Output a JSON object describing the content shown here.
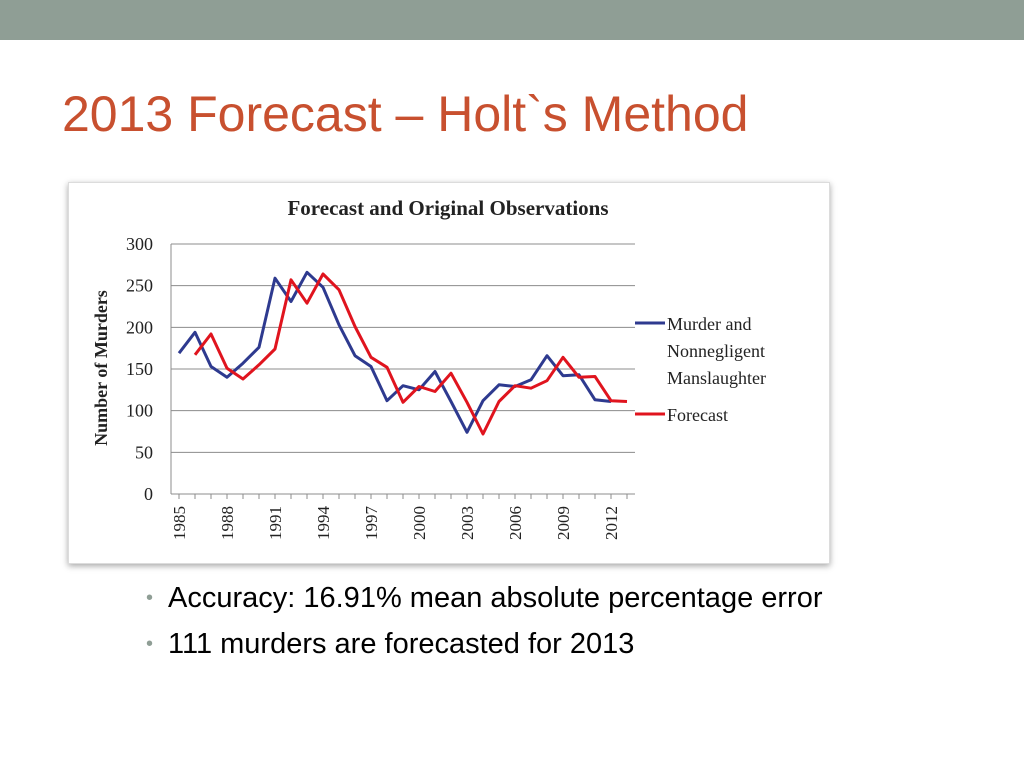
{
  "slide": {
    "title": "2013 Forecast – Holt`s Method",
    "bullets": [
      "Accuracy: 16.91% mean absolute percentage error",
      "111 murders are forecasted for 2013"
    ],
    "colors": {
      "top_bar": "#8f9e95",
      "title": "#c8502f",
      "bullet": "#8f9e95"
    }
  },
  "chart_data": {
    "type": "line",
    "title": "Forecast and Original Observations",
    "xlabel": "",
    "ylabel": "Number of Murders",
    "ylim": [
      0,
      300
    ],
    "yticks": [
      0,
      50,
      100,
      150,
      200,
      250,
      300
    ],
    "xticks": [
      1985,
      1988,
      1991,
      1994,
      1997,
      2000,
      2003,
      2006,
      2009,
      2012
    ],
    "xlim": [
      1985,
      2013
    ],
    "grid": true,
    "legend_position": "right",
    "series": [
      {
        "name": "Murder and Nonnegligent Manslaughter",
        "color": "#2e3a8f",
        "x": [
          1985,
          1986,
          1987,
          1988,
          1989,
          1990,
          1991,
          1992,
          1993,
          1994,
          1995,
          1996,
          1997,
          1998,
          1999,
          2000,
          2001,
          2002,
          2003,
          2004,
          2005,
          2006,
          2007,
          2008,
          2009,
          2010,
          2011,
          2012
        ],
        "values": [
          169,
          194,
          153,
          140,
          157,
          176,
          259,
          231,
          266,
          248,
          203,
          166,
          153,
          112,
          130,
          125,
          147,
          111,
          74,
          112,
          131,
          129,
          137,
          166,
          142,
          143,
          113,
          111
        ]
      },
      {
        "name": "Forecast",
        "color": "#e0141e",
        "x": [
          1986,
          1987,
          1988,
          1989,
          1990,
          1991,
          1992,
          1993,
          1994,
          1995,
          1996,
          1997,
          1998,
          1999,
          2000,
          2001,
          2002,
          2003,
          2004,
          2005,
          2006,
          2007,
          2008,
          2009,
          2010,
          2011,
          2012,
          2013
        ],
        "values": [
          167,
          192,
          151,
          138,
          155,
          174,
          257,
          229,
          264,
          245,
          201,
          164,
          152,
          110,
          129,
          123,
          145,
          110,
          72,
          111,
          130,
          127,
          136,
          164,
          140,
          141,
          112,
          111
        ]
      }
    ]
  }
}
